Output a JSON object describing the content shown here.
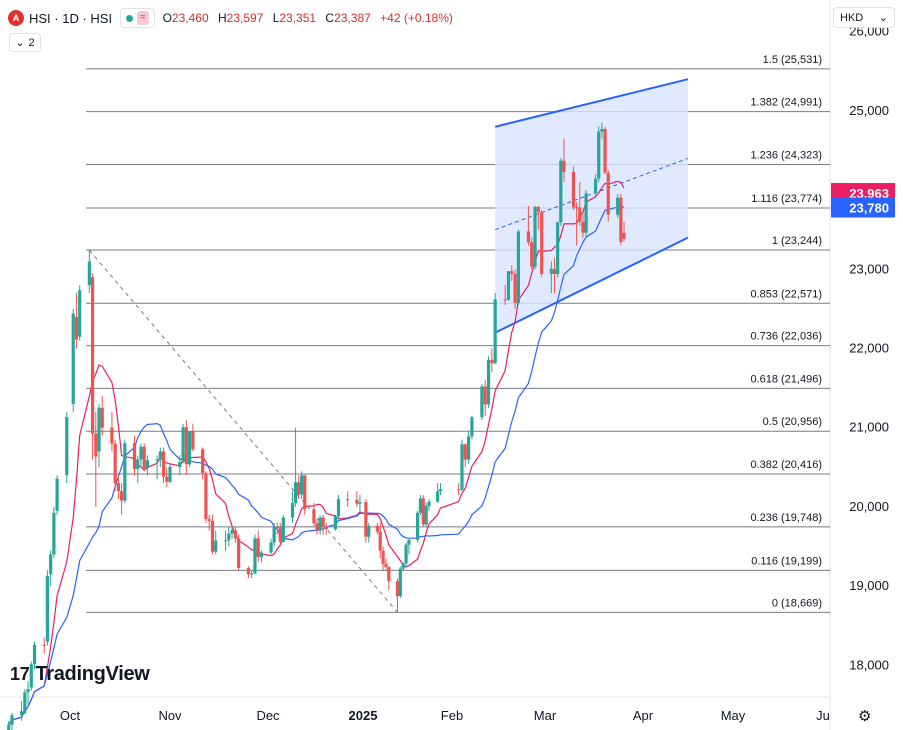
{
  "header": {
    "symbol_badge": "A",
    "symbol": "HSI · 1D · HSI",
    "wave_icon": "≈",
    "ohlc": [
      {
        "k": "O",
        "v": "23,460"
      },
      {
        "k": "H",
        "v": "23,597"
      },
      {
        "k": "L",
        "v": "23,351"
      },
      {
        "k": "C",
        "v": "23,387"
      },
      {
        "k": "",
        "v": "+42 (+0.18%)"
      }
    ],
    "indicator_count": "2"
  },
  "currency": "HKD",
  "logo_text": "TradingView",
  "colors": {
    "up": "#26a69a",
    "down": "#ef5350",
    "ma_fast": "#e91e63",
    "ma_slow": "#2962ff",
    "channel_fill": "#d9e4ff",
    "channel_line": "#2962ff",
    "fib_line": "#787b86",
    "label_pink": "#e91e63",
    "label_blue": "#2962ff"
  },
  "chart_data": {
    "type": "candlestick",
    "ylim": [
      17600,
      26400
    ],
    "y_ticks": [
      "18,000",
      "19,000",
      "20,000",
      "21,000",
      "22,000",
      "23,000",
      "24,000",
      "25,000",
      "26,000"
    ],
    "y_tick_values": [
      18000,
      19000,
      20000,
      21000,
      22000,
      23000,
      24000,
      25000,
      26000
    ],
    "x_ticks": [
      "Oct",
      "Nov",
      "Dec",
      "2025",
      "Feb",
      "Mar",
      "Apr",
      "May",
      "Ju"
    ],
    "x_tick_dates": [
      "2024-10-01",
      "2024-11-01",
      "2024-12-01",
      "2025-01-01",
      "2025-02-01",
      "2025-03-01",
      "2025-04-01",
      "2025-05-01",
      "2025-06-01"
    ],
    "x_range": [
      "2024-09-12",
      "2025-06-01"
    ],
    "price_labels": [
      {
        "text": "23,963",
        "value": 23963,
        "color": "#e91e63"
      },
      {
        "text": "23,780",
        "value": 23780,
        "color": "#2962ff"
      }
    ],
    "fib_levels": [
      {
        "label": "1.5 (25,531)",
        "value": 25531
      },
      {
        "label": "1.382 (24,991)",
        "value": 24991
      },
      {
        "label": "1.236 (24,323)",
        "value": 24323
      },
      {
        "label": "1.116 (23,774)",
        "value": 23774
      },
      {
        "label": "1 (23,244)",
        "value": 23244
      },
      {
        "label": "0.853 (22,571)",
        "value": 22571
      },
      {
        "label": "0.736 (22,036)",
        "value": 22036
      },
      {
        "label": "0.618 (21,496)",
        "value": 21496
      },
      {
        "label": "0.5 (20,956)",
        "value": 20956
      },
      {
        "label": "0.382 (20,416)",
        "value": 20416
      },
      {
        "label": "0.236 (19,748)",
        "value": 19748
      },
      {
        "label": "0.116 (19,199)",
        "value": 19199
      },
      {
        "label": "0 (18,669)",
        "value": 18669
      }
    ],
    "trend_line": {
      "from": {
        "date": "2024-10-07",
        "value": 23241
      },
      "to": {
        "date": "2025-01-13",
        "value": 18669
      }
    },
    "channel": {
      "upper": {
        "from": {
          "date": "2025-02-14",
          "value": 24800
        },
        "to": {
          "date": "2025-04-16",
          "value": 25400
        }
      },
      "lower": {
        "from": {
          "date": "2025-02-14",
          "value": 22200
        },
        "to": {
          "date": "2025-04-16",
          "value": 23400
        }
      },
      "mid": {
        "from": {
          "date": "2025-02-14",
          "value": 23500
        },
        "to": {
          "date": "2025-04-16",
          "value": 24400
        }
      }
    },
    "candles": [
      {
        "d": "2024-09-12",
        "o": 17100,
        "h": 17300,
        "l": 17000,
        "c": 17250
      },
      {
        "d": "2024-09-13",
        "o": 17250,
        "h": 17400,
        "l": 17150,
        "c": 17370
      },
      {
        "d": "2024-09-16",
        "o": 17370,
        "h": 17550,
        "l": 17300,
        "c": 17420
      },
      {
        "d": "2024-09-17",
        "o": 17400,
        "h": 17700,
        "l": 17380,
        "c": 17660
      },
      {
        "d": "2024-09-18",
        "o": 17660,
        "h": 17800,
        "l": 17500,
        "c": 17700
      },
      {
        "d": "2024-09-19",
        "o": 17720,
        "h": 18050,
        "l": 17680,
        "c": 18013
      },
      {
        "d": "2024-09-20",
        "o": 18013,
        "h": 18300,
        "l": 17950,
        "c": 18258
      },
      {
        "d": "2024-09-23",
        "o": 18258,
        "h": 18350,
        "l": 18150,
        "c": 18247
      },
      {
        "d": "2024-09-24",
        "o": 18300,
        "h": 19200,
        "l": 18250,
        "c": 19129
      },
      {
        "d": "2024-09-25",
        "o": 19150,
        "h": 19450,
        "l": 19000,
        "c": 19400
      },
      {
        "d": "2024-09-26",
        "o": 19400,
        "h": 20000,
        "l": 19350,
        "c": 19925
      },
      {
        "d": "2024-09-27",
        "o": 19950,
        "h": 20400,
        "l": 19900,
        "c": 20355
      },
      {
        "d": "2024-09-30",
        "o": 20400,
        "h": 21200,
        "l": 20300,
        "c": 21133
      },
      {
        "d": "2024-10-02",
        "o": 21300,
        "h": 22500,
        "l": 21200,
        "c": 22443
      },
      {
        "d": "2024-10-03",
        "o": 22400,
        "h": 22700,
        "l": 22000,
        "c": 22113
      },
      {
        "d": "2024-10-04",
        "o": 22150,
        "h": 22800,
        "l": 22100,
        "c": 22736
      },
      {
        "d": "2024-10-07",
        "o": 22800,
        "h": 23241,
        "l": 22700,
        "c": 23100
      },
      {
        "d": "2024-10-08",
        "o": 22900,
        "h": 22950,
        "l": 20600,
        "c": 20926
      },
      {
        "d": "2024-10-09",
        "o": 20926,
        "h": 21200,
        "l": 20000,
        "c": 20637
      },
      {
        "d": "2024-10-10",
        "o": 20700,
        "h": 21300,
        "l": 20500,
        "c": 21252
      },
      {
        "d": "2024-10-11",
        "o": 21252,
        "h": 21400,
        "l": 20900,
        "c": 21000
      },
      {
        "d": "2024-10-14",
        "o": 21000,
        "h": 21200,
        "l": 20700,
        "c": 20800
      },
      {
        "d": "2024-10-15",
        "o": 20800,
        "h": 20850,
        "l": 20200,
        "c": 20300
      },
      {
        "d": "2024-10-16",
        "o": 20300,
        "h": 20400,
        "l": 20100,
        "c": 20200
      },
      {
        "d": "2024-10-17",
        "o": 20200,
        "h": 20300,
        "l": 19900,
        "c": 20080
      },
      {
        "d": "2024-10-18",
        "o": 20080,
        "h": 20850,
        "l": 20050,
        "c": 20804
      },
      {
        "d": "2024-10-21",
        "o": 20804,
        "h": 20900,
        "l": 20400,
        "c": 20478
      },
      {
        "d": "2024-10-22",
        "o": 20478,
        "h": 20650,
        "l": 20300,
        "c": 20600
      },
      {
        "d": "2024-10-23",
        "o": 20600,
        "h": 20800,
        "l": 20500,
        "c": 20760
      },
      {
        "d": "2024-10-24",
        "o": 20760,
        "h": 20800,
        "l": 20450,
        "c": 20490
      },
      {
        "d": "2024-10-25",
        "o": 20490,
        "h": 20650,
        "l": 20400,
        "c": 20590
      },
      {
        "d": "2024-10-28",
        "o": 20590,
        "h": 20650,
        "l": 20350,
        "c": 20600
      },
      {
        "d": "2024-10-29",
        "o": 20600,
        "h": 20750,
        "l": 20500,
        "c": 20700
      },
      {
        "d": "2024-10-30",
        "o": 20700,
        "h": 20750,
        "l": 20300,
        "c": 20380
      },
      {
        "d": "2024-10-31",
        "o": 20380,
        "h": 20500,
        "l": 20250,
        "c": 20317
      },
      {
        "d": "2024-11-01",
        "o": 20317,
        "h": 20550,
        "l": 20300,
        "c": 20506
      },
      {
        "d": "2024-11-04",
        "o": 20506,
        "h": 20650,
        "l": 20400,
        "c": 20567
      },
      {
        "d": "2024-11-05",
        "o": 20567,
        "h": 21050,
        "l": 20550,
        "c": 21006
      },
      {
        "d": "2024-11-06",
        "o": 21006,
        "h": 21100,
        "l": 20400,
        "c": 20538
      },
      {
        "d": "2024-11-07",
        "o": 20538,
        "h": 20950,
        "l": 20500,
        "c": 20953
      },
      {
        "d": "2024-11-08",
        "o": 20953,
        "h": 21050,
        "l": 20700,
        "c": 20728
      },
      {
        "d": "2024-11-11",
        "o": 20728,
        "h": 20750,
        "l": 20350,
        "c": 20426
      },
      {
        "d": "2024-11-12",
        "o": 20426,
        "h": 20450,
        "l": 19800,
        "c": 19846
      },
      {
        "d": "2024-11-13",
        "o": 19846,
        "h": 19900,
        "l": 19700,
        "c": 19823
      },
      {
        "d": "2024-11-14",
        "o": 19823,
        "h": 19900,
        "l": 19400,
        "c": 19435
      },
      {
        "d": "2024-11-15",
        "o": 19435,
        "h": 19700,
        "l": 19400,
        "c": 19576
      },
      {
        "d": "2024-11-18",
        "o": 19576,
        "h": 19700,
        "l": 19450,
        "c": 19577
      },
      {
        "d": "2024-11-19",
        "o": 19577,
        "h": 19750,
        "l": 19500,
        "c": 19663
      },
      {
        "d": "2024-11-20",
        "o": 19663,
        "h": 19750,
        "l": 19600,
        "c": 19705
      },
      {
        "d": "2024-11-21",
        "o": 19705,
        "h": 19750,
        "l": 19550,
        "c": 19601
      },
      {
        "d": "2024-11-22",
        "o": 19601,
        "h": 19650,
        "l": 19200,
        "c": 19229
      },
      {
        "d": "2024-11-25",
        "o": 19229,
        "h": 19250,
        "l": 19100,
        "c": 19150
      },
      {
        "d": "2024-11-26",
        "o": 19150,
        "h": 19200,
        "l": 19100,
        "c": 19159
      },
      {
        "d": "2024-11-27",
        "o": 19159,
        "h": 19650,
        "l": 19150,
        "c": 19603
      },
      {
        "d": "2024-11-28",
        "o": 19603,
        "h": 19700,
        "l": 19300,
        "c": 19366
      },
      {
        "d": "2024-11-29",
        "o": 19366,
        "h": 19450,
        "l": 19300,
        "c": 19424
      },
      {
        "d": "2024-12-02",
        "o": 19424,
        "h": 19600,
        "l": 19400,
        "c": 19550
      },
      {
        "d": "2024-12-03",
        "o": 19550,
        "h": 19800,
        "l": 19500,
        "c": 19746
      },
      {
        "d": "2024-12-04",
        "o": 19746,
        "h": 19800,
        "l": 19650,
        "c": 19742
      },
      {
        "d": "2024-12-05",
        "o": 19742,
        "h": 19800,
        "l": 19500,
        "c": 19560
      },
      {
        "d": "2024-12-06",
        "o": 19560,
        "h": 19900,
        "l": 19550,
        "c": 19865
      },
      {
        "d": "2024-12-09",
        "o": 19865,
        "h": 20200,
        "l": 19800,
        "c": 20050
      },
      {
        "d": "2024-12-10",
        "o": 20050,
        "h": 21000,
        "l": 20000,
        "c": 20311
      },
      {
        "d": "2024-12-11",
        "o": 20311,
        "h": 20400,
        "l": 20100,
        "c": 20155
      },
      {
        "d": "2024-12-12",
        "o": 20155,
        "h": 20450,
        "l": 20100,
        "c": 20398
      },
      {
        "d": "2024-12-13",
        "o": 20398,
        "h": 20400,
        "l": 19900,
        "c": 19971
      },
      {
        "d": "2024-12-16",
        "o": 19971,
        "h": 20050,
        "l": 19750,
        "c": 19795
      },
      {
        "d": "2024-12-17",
        "o": 19795,
        "h": 19850,
        "l": 19650,
        "c": 19700
      },
      {
        "d": "2024-12-18",
        "o": 19700,
        "h": 19900,
        "l": 19650,
        "c": 19865
      },
      {
        "d": "2024-12-19",
        "o": 19865,
        "h": 19900,
        "l": 19650,
        "c": 19752
      },
      {
        "d": "2024-12-20",
        "o": 19752,
        "h": 19800,
        "l": 19650,
        "c": 19720
      },
      {
        "d": "2024-12-23",
        "o": 19720,
        "h": 19900,
        "l": 19700,
        "c": 19883
      },
      {
        "d": "2024-12-24",
        "o": 19883,
        "h": 20150,
        "l": 19850,
        "c": 20098
      },
      {
        "d": "2024-12-27",
        "o": 20098,
        "h": 20200,
        "l": 20000,
        "c": 20090
      },
      {
        "d": "2024-12-30",
        "o": 20090,
        "h": 20200,
        "l": 20000,
        "c": 20041
      },
      {
        "d": "2024-12-31",
        "o": 20041,
        "h": 20150,
        "l": 19950,
        "c": 20060
      },
      {
        "d": "2025-01-02",
        "o": 20060,
        "h": 20100,
        "l": 19550,
        "c": 19623
      },
      {
        "d": "2025-01-03",
        "o": 19623,
        "h": 19800,
        "l": 19550,
        "c": 19760
      },
      {
        "d": "2025-01-06",
        "o": 19760,
        "h": 19800,
        "l": 19650,
        "c": 19688
      },
      {
        "d": "2025-01-07",
        "o": 19688,
        "h": 19800,
        "l": 19350,
        "c": 19447
      },
      {
        "d": "2025-01-08",
        "o": 19447,
        "h": 19500,
        "l": 19200,
        "c": 19280
      },
      {
        "d": "2025-01-09",
        "o": 19280,
        "h": 19350,
        "l": 19200,
        "c": 19240
      },
      {
        "d": "2025-01-10",
        "o": 19240,
        "h": 19250,
        "l": 18950,
        "c": 19064
      },
      {
        "d": "2025-01-13",
        "o": 19064,
        "h": 19100,
        "l": 18671,
        "c": 18874
      },
      {
        "d": "2025-01-14",
        "o": 18874,
        "h": 19250,
        "l": 18850,
        "c": 19219
      },
      {
        "d": "2025-01-15",
        "o": 19219,
        "h": 19300,
        "l": 19200,
        "c": 19286
      },
      {
        "d": "2025-01-16",
        "o": 19286,
        "h": 19550,
        "l": 19250,
        "c": 19522
      },
      {
        "d": "2025-01-17",
        "o": 19522,
        "h": 19600,
        "l": 19400,
        "c": 19584
      },
      {
        "d": "2025-01-20",
        "o": 19584,
        "h": 19950,
        "l": 19550,
        "c": 19925
      },
      {
        "d": "2025-01-21",
        "o": 19925,
        "h": 20150,
        "l": 19900,
        "c": 20106
      },
      {
        "d": "2025-01-22",
        "o": 20106,
        "h": 20150,
        "l": 19750,
        "c": 19778
      },
      {
        "d": "2025-01-23",
        "o": 19778,
        "h": 20050,
        "l": 19750,
        "c": 20010
      },
      {
        "d": "2025-01-24",
        "o": 20010,
        "h": 20100,
        "l": 19950,
        "c": 20066
      },
      {
        "d": "2025-01-27",
        "o": 20066,
        "h": 20300,
        "l": 20050,
        "c": 20197
      },
      {
        "d": "2025-01-28",
        "o": 20197,
        "h": 20300,
        "l": 20150,
        "c": 20225
      },
      {
        "d": "2025-02-03",
        "o": 20225,
        "h": 20300,
        "l": 20150,
        "c": 20217
      },
      {
        "d": "2025-02-04",
        "o": 20217,
        "h": 20850,
        "l": 20200,
        "c": 20790
      },
      {
        "d": "2025-02-05",
        "o": 20790,
        "h": 20800,
        "l": 20500,
        "c": 20597
      },
      {
        "d": "2025-02-06",
        "o": 20597,
        "h": 20950,
        "l": 20550,
        "c": 20891
      },
      {
        "d": "2025-02-07",
        "o": 20891,
        "h": 21150,
        "l": 20850,
        "c": 21133
      },
      {
        "d": "2025-02-10",
        "o": 21133,
        "h": 21550,
        "l": 21100,
        "c": 21522
      },
      {
        "d": "2025-02-11",
        "o": 21522,
        "h": 21600,
        "l": 21150,
        "c": 21294
      },
      {
        "d": "2025-02-12",
        "o": 21294,
        "h": 21900,
        "l": 21250,
        "c": 21857
      },
      {
        "d": "2025-02-13",
        "o": 21857,
        "h": 22000,
        "l": 21700,
        "c": 21815
      },
      {
        "d": "2025-02-14",
        "o": 21815,
        "h": 22700,
        "l": 21800,
        "c": 22620
      },
      {
        "d": "2025-02-17",
        "o": 22620,
        "h": 22800,
        "l": 22550,
        "c": 22616
      },
      {
        "d": "2025-02-18",
        "o": 22616,
        "h": 22950,
        "l": 22600,
        "c": 22976
      },
      {
        "d": "2025-02-19",
        "o": 22976,
        "h": 23050,
        "l": 22850,
        "c": 22944
      },
      {
        "d": "2025-02-20",
        "o": 22944,
        "h": 23000,
        "l": 22500,
        "c": 22576
      },
      {
        "d": "2025-02-21",
        "o": 22576,
        "h": 23500,
        "l": 22550,
        "c": 23478
      },
      {
        "d": "2025-02-24",
        "o": 23478,
        "h": 23800,
        "l": 23300,
        "c": 23341
      },
      {
        "d": "2025-02-25",
        "o": 23341,
        "h": 23400,
        "l": 23000,
        "c": 23034
      },
      {
        "d": "2025-02-26",
        "o": 23034,
        "h": 23800,
        "l": 23000,
        "c": 23788
      },
      {
        "d": "2025-02-27",
        "o": 23788,
        "h": 23800,
        "l": 23500,
        "c": 23718
      },
      {
        "d": "2025-02-28",
        "o": 23718,
        "h": 23750,
        "l": 22900,
        "c": 22941
      },
      {
        "d": "2025-03-03",
        "o": 22941,
        "h": 23100,
        "l": 22700,
        "c": 23006
      },
      {
        "d": "2025-03-04",
        "o": 23006,
        "h": 23150,
        "l": 22700,
        "c": 22941
      },
      {
        "d": "2025-03-05",
        "o": 22941,
        "h": 23600,
        "l": 22900,
        "c": 23594
      },
      {
        "d": "2025-03-06",
        "o": 23594,
        "h": 24400,
        "l": 23550,
        "c": 24370
      },
      {
        "d": "2025-03-07",
        "o": 24370,
        "h": 24650,
        "l": 24100,
        "c": 24231
      },
      {
        "d": "2025-03-10",
        "o": 24231,
        "h": 24300,
        "l": 23750,
        "c": 23783
      },
      {
        "d": "2025-03-11",
        "o": 23783,
        "h": 23850,
        "l": 23300,
        "c": 23782
      },
      {
        "d": "2025-03-12",
        "o": 23782,
        "h": 24100,
        "l": 23550,
        "c": 23600
      },
      {
        "d": "2025-03-13",
        "o": 23600,
        "h": 23700,
        "l": 23400,
        "c": 23462
      },
      {
        "d": "2025-03-14",
        "o": 23462,
        "h": 24000,
        "l": 23400,
        "c": 23959
      },
      {
        "d": "2025-03-17",
        "o": 23959,
        "h": 24200,
        "l": 23900,
        "c": 24145
      },
      {
        "d": "2025-03-18",
        "o": 24145,
        "h": 24800,
        "l": 24100,
        "c": 24740
      },
      {
        "d": "2025-03-19",
        "o": 24740,
        "h": 24850,
        "l": 24650,
        "c": 24771
      },
      {
        "d": "2025-03-20",
        "o": 24771,
        "h": 24800,
        "l": 24200,
        "c": 24219
      },
      {
        "d": "2025-03-21",
        "o": 24219,
        "h": 24250,
        "l": 23600,
        "c": 23689
      },
      {
        "d": "2025-03-24",
        "o": 23689,
        "h": 23950,
        "l": 23650,
        "c": 23905
      },
      {
        "d": "2025-03-25",
        "o": 23905,
        "h": 23950,
        "l": 23300,
        "c": 23344
      },
      {
        "d": "2025-03-26",
        "o": 23460,
        "h": 23597,
        "l": 23351,
        "c": 23387
      }
    ]
  }
}
